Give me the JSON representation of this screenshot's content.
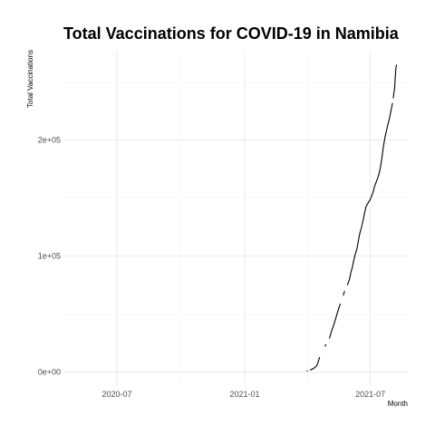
{
  "chart_data": {
    "type": "line",
    "title": "Total Vaccinations for COVID-19 in Namibia",
    "xlabel": "Month",
    "ylabel": "Total Vaccinations",
    "x_ticks": [
      {
        "date": "2020-07-01",
        "label": "2020-07"
      },
      {
        "date": "2021-01-01",
        "label": "2021-01"
      },
      {
        "date": "2021-07-01",
        "label": "2021-07"
      }
    ],
    "y_ticks": [
      {
        "value": 0,
        "label": "0e+00"
      },
      {
        "value": 100000,
        "label": "1e+05"
      },
      {
        "value": 200000,
        "label": "2e+05"
      }
    ],
    "xlim": [
      "2020-04-15",
      "2021-08-24"
    ],
    "ylim": [
      -12000,
      277000
    ],
    "grid": true,
    "series": [
      {
        "segments": [
          [
            [
              "2021-04-01",
              500
            ],
            [
              "2021-04-01",
              1500
            ]
          ],
          [
            [
              "2021-04-05",
              1800
            ],
            [
              "2021-04-08",
              2500
            ],
            [
              "2021-04-11",
              3500
            ],
            [
              "2021-04-14",
              5000
            ],
            [
              "2021-04-16",
              7000
            ],
            [
              "2021-04-18",
              11000
            ],
            [
              "2021-04-19",
              13000
            ]
          ],
          [
            [
              "2021-04-27",
              22000
            ],
            [
              "2021-04-28",
              24000
            ]
          ],
          [
            [
              "2021-05-03",
              29000
            ],
            [
              "2021-05-05",
              33000
            ],
            [
              "2021-05-07",
              37000
            ],
            [
              "2021-05-09",
              40000
            ],
            [
              "2021-05-11",
              44000
            ],
            [
              "2021-05-13",
              48000
            ],
            [
              "2021-05-15",
              52000
            ],
            [
              "2021-05-17",
              56000
            ],
            [
              "2021-05-19",
              59000
            ]
          ],
          [
            [
              "2021-05-23",
              66000
            ],
            [
              "2021-05-25",
              70000
            ]
          ],
          [
            [
              "2021-05-29",
              75000
            ],
            [
              "2021-06-01",
              80000
            ],
            [
              "2021-06-03",
              86000
            ],
            [
              "2021-06-05",
              90000
            ],
            [
              "2021-06-07",
              96000
            ],
            [
              "2021-06-09",
              101000
            ],
            [
              "2021-06-12",
              107000
            ],
            [
              "2021-06-14",
              114000
            ],
            [
              "2021-06-16",
              120000
            ],
            [
              "2021-06-18",
              124000
            ],
            [
              "2021-06-21",
              132000
            ],
            [
              "2021-06-23",
              138000
            ],
            [
              "2021-06-25",
              143000
            ],
            [
              "2021-06-28",
              146000
            ],
            [
              "2021-07-01",
              149000
            ],
            [
              "2021-07-03",
              152000
            ],
            [
              "2021-07-05",
              155000
            ],
            [
              "2021-07-07",
              160000
            ],
            [
              "2021-07-09",
              163000
            ],
            [
              "2021-07-12",
              168000
            ],
            [
              "2021-07-14",
              172000
            ],
            [
              "2021-07-16",
              178000
            ],
            [
              "2021-07-18",
              186000
            ],
            [
              "2021-07-20",
              195000
            ],
            [
              "2021-07-22",
              202000
            ],
            [
              "2021-07-25",
              210000
            ],
            [
              "2021-07-27",
              215000
            ],
            [
              "2021-07-29",
              220000
            ],
            [
              "2021-07-31",
              226000
            ],
            [
              "2021-08-02",
              232000
            ]
          ],
          [
            [
              "2021-08-03",
              236000
            ],
            [
              "2021-08-05",
              245000
            ],
            [
              "2021-08-06",
              255000
            ],
            [
              "2021-08-07",
              263000
            ],
            [
              "2021-08-08",
              265000
            ]
          ]
        ]
      }
    ]
  }
}
